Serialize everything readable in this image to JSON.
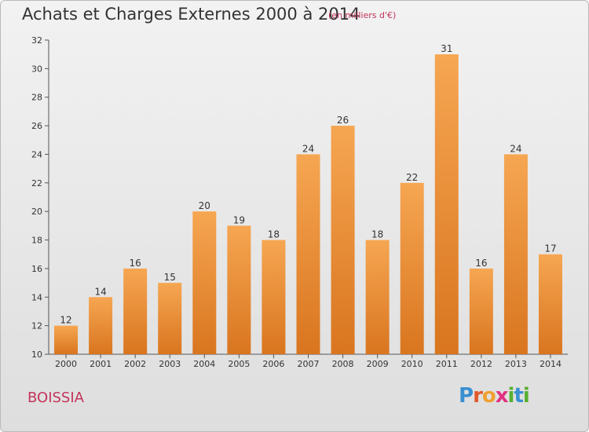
{
  "title": "Achats et Charges Externes 2000 à 2014",
  "subtitle": "(en milliers d'€)",
  "commune": "BOISSIA",
  "logo": {
    "letters": [
      "P",
      "r",
      "o",
      "x",
      "i",
      "t",
      "i"
    ],
    "colors": [
      "#3a8fd0",
      "#e05a2a",
      "#f0a030",
      "#e03080",
      "#58b030",
      "#3a8fd0",
      "#58b030"
    ]
  },
  "colors": {
    "bar_top": "#f6a652",
    "bar_bottom": "#d9751f",
    "label": "#333333"
  },
  "chart_data": {
    "type": "bar",
    "title": "Achats et Charges Externes 2000 à 2014",
    "subtitle": "(en milliers d'€)",
    "xlabel": "",
    "ylabel": "",
    "categories": [
      "2000",
      "2001",
      "2002",
      "2003",
      "2004",
      "2005",
      "2006",
      "2007",
      "2008",
      "2009",
      "2010",
      "2011",
      "2012",
      "2013",
      "2014"
    ],
    "values": [
      12,
      14,
      16,
      15,
      20,
      19,
      18,
      24,
      26,
      18,
      22,
      31,
      16,
      24,
      17
    ],
    "ylim": [
      10,
      32
    ],
    "yticks": [
      10,
      12,
      14,
      16,
      18,
      20,
      22,
      24,
      26,
      28,
      30,
      32
    ],
    "grid": false,
    "legend": "none"
  }
}
